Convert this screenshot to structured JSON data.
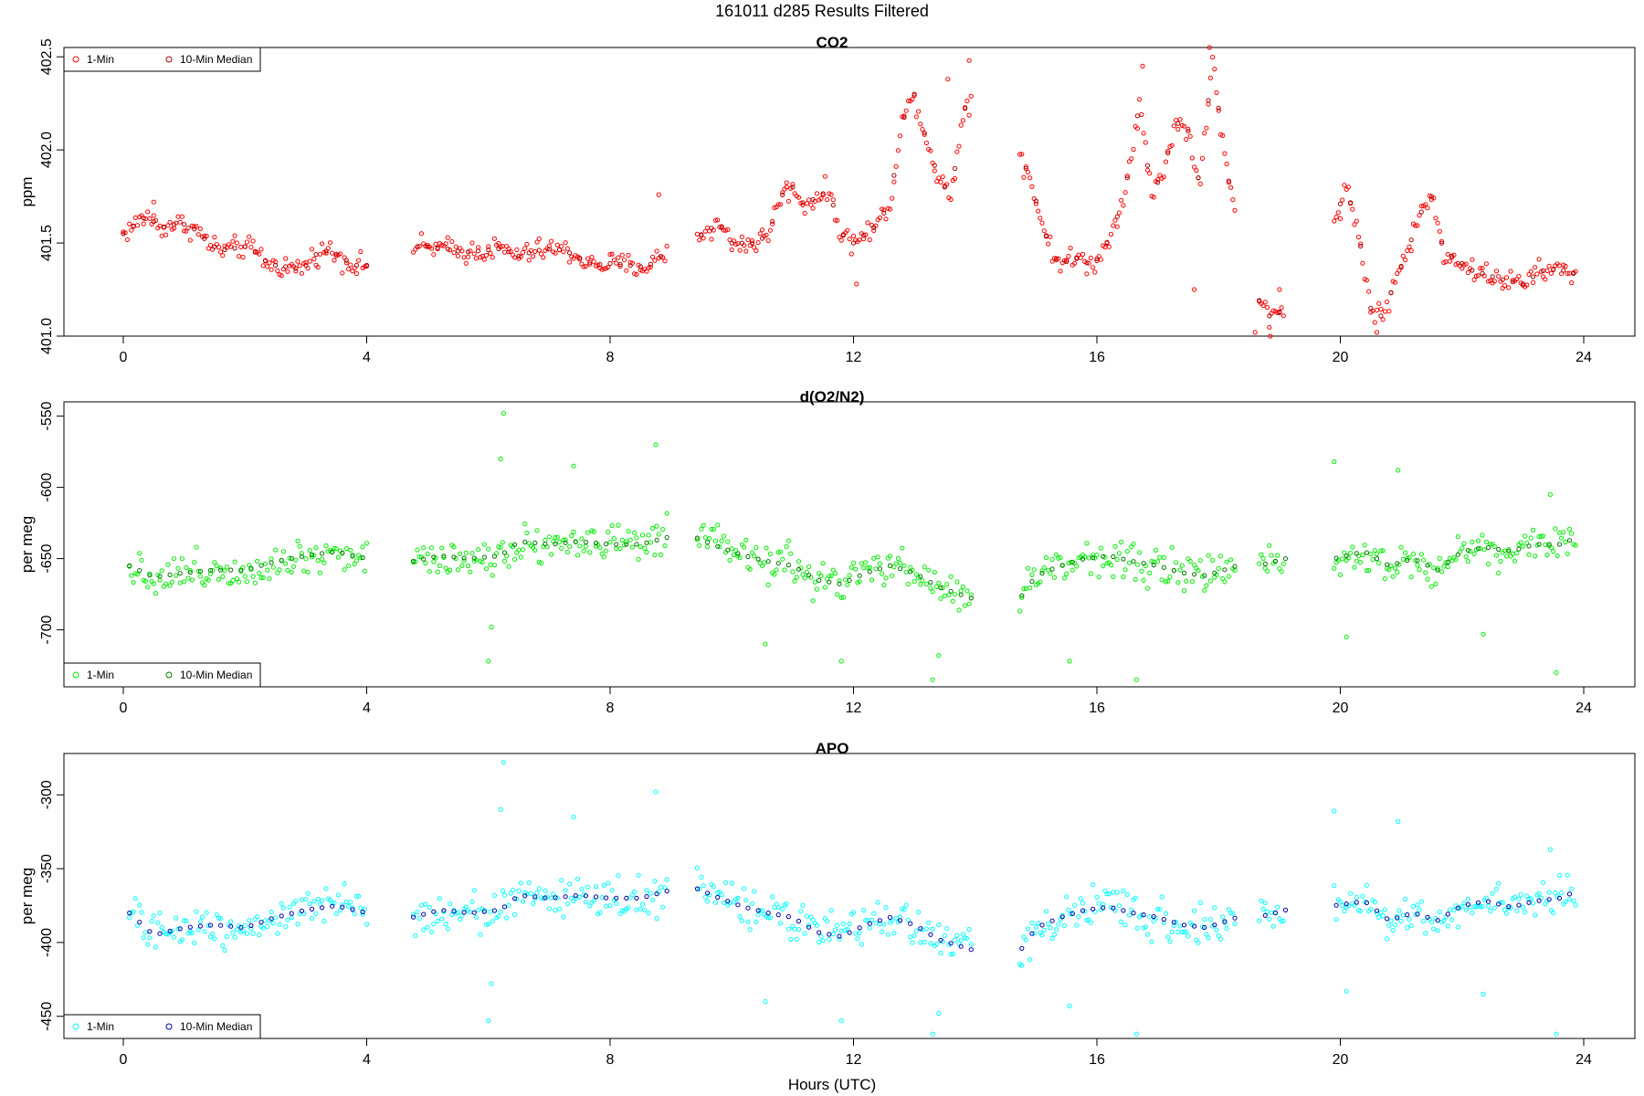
{
  "figure_title": "161011   d285   Results Filtered",
  "xlabel": "Hours (UTC)",
  "legend_labels": {
    "one_min": "1-Min",
    "ten_min": "10-Min Median"
  },
  "chart_data": [
    {
      "type": "scatter",
      "title": "CO2",
      "ylabel": "ppm",
      "xlim": [
        0,
        24
      ],
      "ylim": [
        401.0,
        402.55
      ],
      "xticks": [
        0,
        4,
        8,
        12,
        16,
        20,
        24
      ],
      "yticks": [
        401.0,
        401.5,
        402.0,
        402.5
      ],
      "ytick_labels": [
        "401.0",
        "401.5",
        "402.0",
        "402.5"
      ],
      "legend_position": "top-left",
      "colors": {
        "one_min": "#ff0000",
        "ten_min": "#aa0000"
      },
      "gaps": [
        [
          4.0,
          4.75
        ],
        [
          8.95,
          9.4
        ],
        [
          13.95,
          14.7
        ],
        [
          18.3,
          18.65
        ],
        [
          19.1,
          19.9
        ]
      ],
      "profile": [
        [
          0.0,
          401.55
        ],
        [
          0.2,
          401.6
        ],
        [
          0.4,
          401.65
        ],
        [
          0.6,
          401.58
        ],
        [
          0.8,
          401.6
        ],
        [
          1.0,
          401.6
        ],
        [
          1.2,
          401.57
        ],
        [
          1.4,
          401.5
        ],
        [
          1.6,
          401.46
        ],
        [
          1.8,
          401.47
        ],
        [
          2.0,
          401.48
        ],
        [
          2.2,
          401.45
        ],
        [
          2.4,
          401.38
        ],
        [
          2.6,
          401.38
        ],
        [
          2.8,
          401.36
        ],
        [
          3.0,
          401.38
        ],
        [
          3.2,
          401.45
        ],
        [
          3.4,
          401.46
        ],
        [
          3.6,
          401.42
        ],
        [
          3.8,
          401.38
        ],
        [
          4.0,
          401.38
        ],
        [
          4.75,
          401.48
        ],
        [
          5.0,
          401.48
        ],
        [
          5.3,
          401.47
        ],
        [
          5.6,
          401.45
        ],
        [
          5.9,
          401.46
        ],
        [
          6.2,
          401.47
        ],
        [
          6.5,
          401.43
        ],
        [
          6.8,
          401.46
        ],
        [
          7.1,
          401.47
        ],
        [
          7.4,
          401.44
        ],
        [
          7.7,
          401.38
        ],
        [
          8.0,
          401.39
        ],
        [
          8.3,
          401.38
        ],
        [
          8.6,
          401.37
        ],
        [
          8.8,
          401.42
        ],
        [
          8.95,
          401.46
        ],
        [
          9.4,
          401.52
        ],
        [
          9.6,
          401.57
        ],
        [
          9.8,
          401.6
        ],
        [
          10.0,
          401.5
        ],
        [
          10.2,
          401.5
        ],
        [
          10.4,
          401.5
        ],
        [
          10.6,
          401.55
        ],
        [
          10.8,
          401.75
        ],
        [
          11.0,
          401.8
        ],
        [
          11.2,
          401.7
        ],
        [
          11.4,
          401.75
        ],
        [
          11.6,
          401.78
        ],
        [
          11.8,
          401.55
        ],
        [
          12.0,
          401.5
        ],
        [
          12.2,
          401.55
        ],
        [
          12.4,
          401.6
        ],
        [
          12.6,
          401.72
        ],
        [
          12.8,
          402.15
        ],
        [
          13.0,
          402.3
        ],
        [
          13.2,
          402.05
        ],
        [
          13.4,
          401.85
        ],
        [
          13.6,
          401.75
        ],
        [
          13.8,
          402.2
        ],
        [
          13.95,
          402.3
        ],
        [
          14.7,
          402.0
        ],
        [
          14.9,
          401.85
        ],
        [
          15.1,
          401.6
        ],
        [
          15.3,
          401.42
        ],
        [
          15.5,
          401.4
        ],
        [
          15.7,
          401.42
        ],
        [
          15.9,
          401.38
        ],
        [
          16.1,
          401.45
        ],
        [
          16.3,
          401.6
        ],
        [
          16.5,
          401.85
        ],
        [
          16.7,
          402.25
        ],
        [
          16.9,
          401.75
        ],
        [
          17.1,
          401.9
        ],
        [
          17.3,
          402.15
        ],
        [
          17.5,
          402.1
        ],
        [
          17.7,
          401.8
        ],
        [
          17.9,
          402.5
        ],
        [
          18.1,
          401.95
        ],
        [
          18.3,
          401.6
        ],
        [
          18.65,
          401.2
        ],
        [
          18.85,
          401.1
        ],
        [
          19.1,
          401.15
        ],
        [
          19.9,
          401.62
        ],
        [
          20.1,
          401.8
        ],
        [
          20.3,
          401.55
        ],
        [
          20.5,
          401.15
        ],
        [
          20.7,
          401.1
        ],
        [
          20.9,
          401.3
        ],
        [
          21.1,
          401.45
        ],
        [
          21.3,
          401.65
        ],
        [
          21.5,
          401.75
        ],
        [
          21.7,
          401.45
        ],
        [
          21.9,
          401.42
        ],
        [
          22.1,
          401.36
        ],
        [
          22.4,
          401.33
        ],
        [
          22.7,
          401.3
        ],
        [
          23.0,
          401.28
        ],
        [
          23.3,
          401.35
        ],
        [
          23.6,
          401.36
        ],
        [
          23.9,
          401.33
        ]
      ],
      "spread": 0.05,
      "outliers": [
        [
          0.5,
          401.72
        ],
        [
          8.8,
          401.76
        ],
        [
          10.9,
          401.8
        ],
        [
          13.55,
          402.38
        ],
        [
          13.9,
          402.48
        ],
        [
          16.75,
          402.45
        ],
        [
          17.85,
          402.58
        ],
        [
          18.6,
          401.02
        ],
        [
          18.85,
          400.98
        ],
        [
          20.6,
          401.02
        ],
        [
          12.05,
          401.28
        ],
        [
          17.6,
          401.25
        ],
        [
          19.0,
          401.25
        ]
      ]
    },
    {
      "type": "scatter",
      "title": "d(O2/N2)",
      "ylabel": "per meg",
      "xlim": [
        0,
        24
      ],
      "ylim": [
        -740,
        -540
      ],
      "xticks": [
        0,
        4,
        8,
        12,
        16,
        20,
        24
      ],
      "yticks": [
        -700,
        -650,
        -600,
        -550
      ],
      "ytick_labels": [
        "-700",
        "-650",
        "-600",
        "-550"
      ],
      "legend_position": "bottom-left",
      "colors": {
        "one_min": "#00ee00",
        "ten_min": "#007700"
      },
      "gaps": [
        [
          4.0,
          4.75
        ],
        [
          8.95,
          9.4
        ],
        [
          13.95,
          14.7
        ],
        [
          18.3,
          18.65
        ],
        [
          19.1,
          19.9
        ]
      ],
      "profile": [
        [
          0.1,
          -655
        ],
        [
          0.5,
          -663
        ],
        [
          1.0,
          -660
        ],
        [
          1.5,
          -658
        ],
        [
          2.0,
          -658
        ],
        [
          2.5,
          -652
        ],
        [
          3.0,
          -648
        ],
        [
          3.5,
          -645
        ],
        [
          4.0,
          -650
        ],
        [
          4.75,
          -652
        ],
        [
          5.2,
          -648
        ],
        [
          5.7,
          -650
        ],
        [
          6.2,
          -648
        ],
        [
          6.5,
          -638
        ],
        [
          7.0,
          -640
        ],
        [
          7.5,
          -638
        ],
        [
          8.0,
          -640
        ],
        [
          8.5,
          -640
        ],
        [
          8.95,
          -635
        ],
        [
          9.4,
          -635
        ],
        [
          9.8,
          -642
        ],
        [
          10.2,
          -648
        ],
        [
          10.6,
          -652
        ],
        [
          11.0,
          -655
        ],
        [
          11.4,
          -665
        ],
        [
          11.8,
          -668
        ],
        [
          12.2,
          -660
        ],
        [
          12.6,
          -655
        ],
        [
          13.0,
          -660
        ],
        [
          13.4,
          -670
        ],
        [
          13.95,
          -678
        ],
        [
          14.7,
          -680
        ],
        [
          15.0,
          -662
        ],
        [
          15.4,
          -655
        ],
        [
          15.8,
          -650
        ],
        [
          16.2,
          -648
        ],
        [
          16.6,
          -652
        ],
        [
          17.0,
          -655
        ],
        [
          17.4,
          -660
        ],
        [
          17.8,
          -662
        ],
        [
          18.3,
          -655
        ],
        [
          18.65,
          -655
        ],
        [
          19.1,
          -650
        ],
        [
          19.9,
          -650
        ],
        [
          20.4,
          -645
        ],
        [
          20.8,
          -655
        ],
        [
          21.2,
          -650
        ],
        [
          21.6,
          -658
        ],
        [
          22.0,
          -645
        ],
        [
          22.4,
          -642
        ],
        [
          22.8,
          -645
        ],
        [
          23.2,
          -640
        ],
        [
          23.6,
          -640
        ],
        [
          23.9,
          -635
        ]
      ],
      "spread": 11,
      "outliers": [
        [
          6.25,
          -548
        ],
        [
          6.2,
          -580
        ],
        [
          7.4,
          -585
        ],
        [
          8.75,
          -570
        ],
        [
          6.0,
          -722
        ],
        [
          6.05,
          -698
        ],
        [
          10.55,
          -710
        ],
        [
          11.8,
          -722
        ],
        [
          13.4,
          -718
        ],
        [
          13.3,
          -735
        ],
        [
          15.55,
          -722
        ],
        [
          16.65,
          -735
        ],
        [
          19.9,
          -582
        ],
        [
          20.1,
          -705
        ],
        [
          20.95,
          -588
        ],
        [
          22.35,
          -703
        ],
        [
          23.55,
          -730
        ],
        [
          23.45,
          -605
        ]
      ]
    },
    {
      "type": "scatter",
      "title": "APO",
      "ylabel": "per meg",
      "xlim": [
        0,
        24
      ],
      "ylim": [
        -465,
        -272
      ],
      "xticks": [
        0,
        4,
        8,
        12,
        16,
        20,
        24
      ],
      "yticks": [
        -450,
        -400,
        -350,
        -300
      ],
      "ytick_labels": [
        "-450",
        "-400",
        "-350",
        "-300"
      ],
      "legend_position": "bottom-left",
      "colors": {
        "one_min": "#00ffff",
        "ten_min": "#0000aa"
      },
      "gaps": [
        [
          4.0,
          4.75
        ],
        [
          8.95,
          9.4
        ],
        [
          13.95,
          14.7
        ],
        [
          18.3,
          18.65
        ],
        [
          19.1,
          19.9
        ]
      ],
      "profile": [
        [
          0.1,
          -380
        ],
        [
          0.5,
          -395
        ],
        [
          1.0,
          -390
        ],
        [
          1.5,
          -388
        ],
        [
          2.0,
          -390
        ],
        [
          2.5,
          -383
        ],
        [
          3.0,
          -378
        ],
        [
          3.5,
          -375
        ],
        [
          4.0,
          -380
        ],
        [
          4.75,
          -383
        ],
        [
          5.2,
          -378
        ],
        [
          5.7,
          -380
        ],
        [
          6.2,
          -378
        ],
        [
          6.5,
          -368
        ],
        [
          7.0,
          -370
        ],
        [
          7.5,
          -368
        ],
        [
          8.0,
          -370
        ],
        [
          8.5,
          -370
        ],
        [
          8.95,
          -365
        ],
        [
          9.4,
          -363
        ],
        [
          9.8,
          -370
        ],
        [
          10.2,
          -376
        ],
        [
          10.6,
          -380
        ],
        [
          11.0,
          -383
        ],
        [
          11.4,
          -393
        ],
        [
          11.8,
          -396
        ],
        [
          12.2,
          -388
        ],
        [
          12.6,
          -383
        ],
        [
          13.0,
          -388
        ],
        [
          13.4,
          -398
        ],
        [
          13.95,
          -405
        ],
        [
          14.7,
          -408
        ],
        [
          15.0,
          -390
        ],
        [
          15.4,
          -383
        ],
        [
          15.8,
          -378
        ],
        [
          16.2,
          -376
        ],
        [
          16.6,
          -380
        ],
        [
          17.0,
          -383
        ],
        [
          17.4,
          -388
        ],
        [
          17.8,
          -390
        ],
        [
          18.3,
          -383
        ],
        [
          18.65,
          -383
        ],
        [
          19.1,
          -378
        ],
        [
          19.9,
          -375
        ],
        [
          20.4,
          -372
        ],
        [
          20.8,
          -385
        ],
        [
          21.2,
          -380
        ],
        [
          21.6,
          -385
        ],
        [
          22.0,
          -375
        ],
        [
          22.4,
          -372
        ],
        [
          22.8,
          -376
        ],
        [
          23.2,
          -372
        ],
        [
          23.6,
          -370
        ],
        [
          23.9,
          -365
        ]
      ],
      "spread": 11,
      "outliers": [
        [
          6.25,
          -278
        ],
        [
          6.2,
          -310
        ],
        [
          7.4,
          -315
        ],
        [
          8.75,
          -298
        ],
        [
          6.0,
          -453
        ],
        [
          6.05,
          -428
        ],
        [
          10.55,
          -440
        ],
        [
          11.8,
          -453
        ],
        [
          13.4,
          -448
        ],
        [
          13.3,
          -462
        ],
        [
          15.55,
          -443
        ],
        [
          16.65,
          -462
        ],
        [
          19.9,
          -311
        ],
        [
          20.1,
          -433
        ],
        [
          20.95,
          -318
        ],
        [
          22.35,
          -435
        ],
        [
          23.55,
          -462
        ],
        [
          23.45,
          -337
        ]
      ]
    }
  ]
}
